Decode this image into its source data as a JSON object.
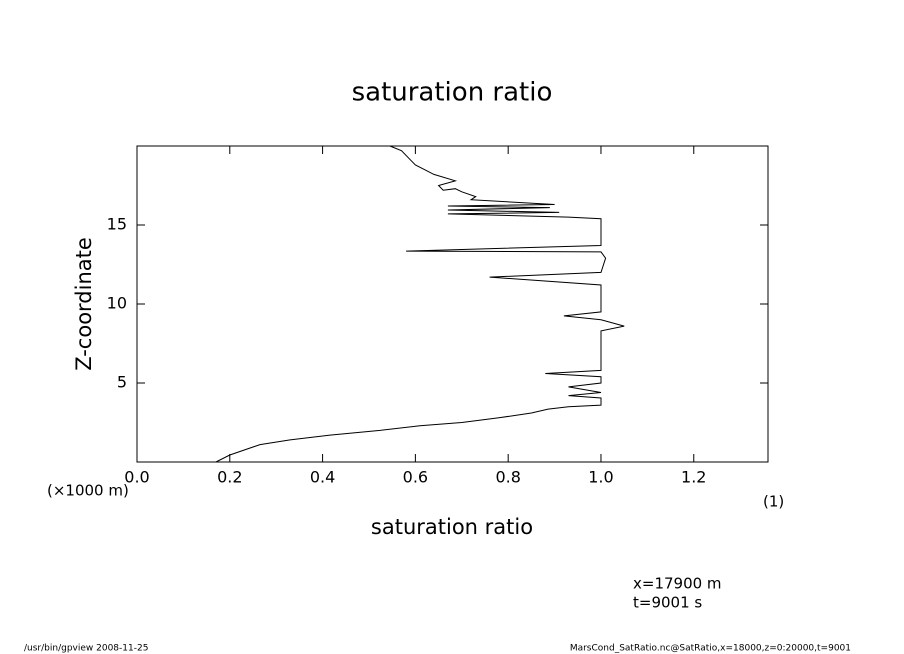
{
  "chart_data": {
    "type": "line",
    "title": "saturation ratio",
    "x_label": "saturation ratio",
    "y_label": "Z-coordinate",
    "y_unit": "(×1000 m)",
    "x_unit": "(1)",
    "annotations": [
      "x=17900 m",
      "t=9001 s"
    ],
    "footer_left": "/usr/bin/gpview  2008-11-25",
    "footer_right": "MarsCond_SatRatio.nc@SatRatio,x=18000,z=0:20000,t=9001",
    "xlim": [
      0,
      1.36
    ],
    "ylim": [
      0,
      20
    ],
    "xticks": [
      {
        "value": 0,
        "label": "0.0"
      },
      0.2,
      0.4,
      0.6,
      0.8,
      {
        "value": 1,
        "label": "1.0"
      },
      1.2
    ],
    "yticks": [
      5,
      10,
      15
    ],
    "z": [
      0,
      0.44,
      1.1,
      1.4,
      1.7,
      2.0,
      2.3,
      2.5,
      2.8,
      3.1,
      3.35,
      3.5,
      3.6,
      4.05,
      4.2,
      4.4,
      4.75,
      5.0,
      5.4,
      5.6,
      5.8,
      8.3,
      8.6,
      9.0,
      9.25,
      9.5,
      11.2,
      11.7,
      12.0,
      12.9,
      13.3,
      13.35,
      13.7,
      15.4,
      15.5,
      15.7,
      15.8,
      15.95,
      16.1,
      16.2,
      16.3,
      16.6,
      16.8,
      17.1,
      17.3,
      17.2,
      17.5,
      17.8,
      18.2,
      18.5,
      18.8,
      19.1,
      19.7,
      20.0
    ],
    "series": [
      {
        "name": "saturation ratio",
        "color": "#000000",
        "values": [
          0.17,
          0.2,
          0.265,
          0.33,
          0.416,
          0.524,
          0.61,
          0.7,
          0.78,
          0.85,
          0.886,
          0.93,
          1.0,
          1.0,
          0.93,
          1.0,
          0.93,
          1.0,
          1.0,
          0.88,
          1.0,
          1.0,
          1.05,
          1.0,
          0.92,
          1.0,
          1.0,
          0.76,
          1.0,
          1.01,
          1.0,
          0.58,
          1.0,
          1.0,
          0.93,
          0.67,
          0.91,
          0.67,
          0.89,
          0.67,
          0.9,
          0.72,
          0.73,
          0.7,
          0.686,
          0.66,
          0.65,
          0.686,
          0.64,
          0.62,
          0.6,
          0.59,
          0.57,
          0.545
        ]
      }
    ]
  }
}
